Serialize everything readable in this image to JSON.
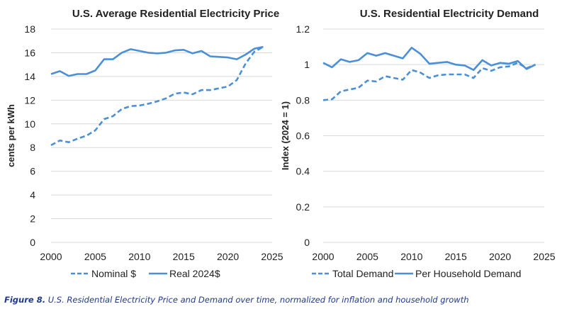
{
  "caption": {
    "label": "Figure 8.",
    "text": "U.S. Residential Electricity Price and Demand over time, normalized for inflation and household growth"
  },
  "chart_data": [
    {
      "type": "line",
      "title": "U.S. Average Residential Electricity Price",
      "xlabel": "",
      "ylabel": "cents per kWh",
      "xlim": [
        2000,
        2025
      ],
      "ylim": [
        0,
        18
      ],
      "xticks": [
        2000,
        2005,
        2010,
        2015,
        2020,
        2025
      ],
      "yticks": [
        0,
        2,
        4,
        6,
        8,
        10,
        12,
        14,
        16,
        18
      ],
      "grid": true,
      "legend": "bottom",
      "x": [
        2000,
        2001,
        2002,
        2003,
        2004,
        2005,
        2006,
        2007,
        2008,
        2009,
        2010,
        2011,
        2012,
        2013,
        2014,
        2015,
        2016,
        2017,
        2018,
        2019,
        2020,
        2021,
        2022,
        2023,
        2024
      ],
      "series": [
        {
          "name": "Nominal $",
          "style": "dashed",
          "color": "#4a90d9",
          "values": [
            8.2,
            8.6,
            8.45,
            8.75,
            9.0,
            9.45,
            10.4,
            10.65,
            11.25,
            11.5,
            11.55,
            11.7,
            11.9,
            12.15,
            12.55,
            12.65,
            12.5,
            12.85,
            12.85,
            13.0,
            13.15,
            13.7,
            15.1,
            16.1,
            16.5
          ]
        },
        {
          "name": "Real 2024$",
          "style": "solid",
          "color": "#4a90d9",
          "values": [
            14.2,
            14.45,
            14.05,
            14.2,
            14.2,
            14.5,
            15.45,
            15.45,
            16.0,
            16.3,
            16.15,
            16.0,
            15.95,
            16.0,
            16.2,
            16.25,
            15.95,
            16.15,
            15.7,
            15.65,
            15.6,
            15.45,
            15.85,
            16.35,
            16.5
          ]
        }
      ]
    },
    {
      "type": "line",
      "title": "U.S. Residential Electricity Demand",
      "xlabel": "",
      "ylabel": "Index (2024 = 1)",
      "xlim": [
        2000,
        2025
      ],
      "ylim": [
        0,
        1.2
      ],
      "xticks": [
        2000,
        2005,
        2010,
        2015,
        2020,
        2025
      ],
      "yticks": [
        0,
        0.2,
        0.4,
        0.6,
        0.8,
        1,
        1.2
      ],
      "grid": true,
      "legend": "bottom",
      "x": [
        2000,
        2001,
        2002,
        2003,
        2004,
        2005,
        2006,
        2007,
        2008,
        2009,
        2010,
        2011,
        2012,
        2013,
        2014,
        2015,
        2016,
        2017,
        2018,
        2019,
        2020,
        2021,
        2022,
        2023,
        2024
      ],
      "series": [
        {
          "name": "Total Demand",
          "style": "dashed",
          "color": "#4a90d9",
          "values": [
            0.8,
            0.805,
            0.85,
            0.86,
            0.87,
            0.91,
            0.905,
            0.935,
            0.925,
            0.915,
            0.97,
            0.955,
            0.925,
            0.94,
            0.945,
            0.945,
            0.945,
            0.925,
            0.98,
            0.965,
            0.985,
            0.99,
            1.01,
            0.98,
            1.0
          ]
        },
        {
          "name": "Per Household Demand",
          "style": "solid",
          "color": "#4a90d9",
          "values": [
            1.01,
            0.985,
            1.03,
            1.015,
            1.025,
            1.065,
            1.05,
            1.065,
            1.05,
            1.035,
            1.095,
            1.06,
            1.005,
            1.01,
            1.015,
            1.0,
            0.995,
            0.97,
            1.025,
            0.995,
            1.01,
            1.005,
            1.02,
            0.975,
            1.0
          ]
        }
      ]
    }
  ]
}
